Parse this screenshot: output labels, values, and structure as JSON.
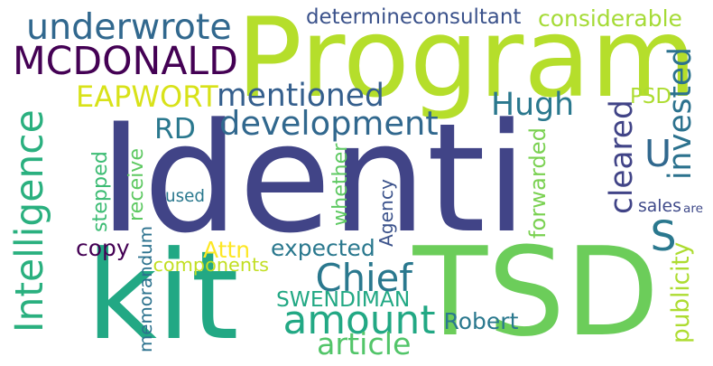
{
  "words": [
    {
      "text": "Identi",
      "color": "#414487"
    },
    {
      "text": "Program",
      "color": "#b5de2b"
    },
    {
      "text": "TSD",
      "color": "#6ccd5a"
    },
    {
      "text": "kit",
      "color": "#22a884"
    },
    {
      "text": "MCDONALD",
      "color": "#440154"
    },
    {
      "text": "underwrote",
      "color": "#31688e"
    },
    {
      "text": "development",
      "color": "#31688e"
    },
    {
      "text": "EAPWORT",
      "color": "#d8e219"
    },
    {
      "text": "mentioned",
      "color": "#355f8d"
    },
    {
      "text": "Intelligence",
      "color": "#2ab07f"
    },
    {
      "text": "invested",
      "color": "#2c728e"
    },
    {
      "text": "Hugh",
      "color": "#2a788e"
    },
    {
      "text": "RD",
      "color": "#2a788e"
    },
    {
      "text": "cleared",
      "color": "#414487"
    },
    {
      "text": "U",
      "color": "#31688e"
    },
    {
      "text": "S",
      "color": "#2a788e"
    },
    {
      "text": "amount",
      "color": "#22a884"
    },
    {
      "text": "Chief",
      "color": "#2a788e"
    },
    {
      "text": "article",
      "color": "#52c569"
    },
    {
      "text": "determineconsultant",
      "color": "#3b528b"
    },
    {
      "text": "considerable",
      "color": "#a5db36"
    },
    {
      "text": "PSD",
      "color": "#addc30"
    },
    {
      "text": "receive",
      "color": "#5ec962"
    },
    {
      "text": "stepped",
      "color": "#3dbc74"
    },
    {
      "text": "whether",
      "color": "#5ec962"
    },
    {
      "text": "forwarded",
      "color": "#7ad151"
    },
    {
      "text": "used",
      "color": "#2a788e"
    },
    {
      "text": "sales",
      "color": "#3e4989"
    },
    {
      "text": "are",
      "color": "#3e4989"
    },
    {
      "text": "Agency",
      "color": "#3b528b"
    },
    {
      "text": "copy",
      "color": "#440154"
    },
    {
      "text": "Attn",
      "color": "#fde725"
    },
    {
      "text": "expected",
      "color": "#2a788e"
    },
    {
      "text": "components",
      "color": "#c2df23"
    },
    {
      "text": "memorandum",
      "color": "#2c728e"
    },
    {
      "text": "SWENDIMAN",
      "color": "#22a884"
    },
    {
      "text": "publicity",
      "color": "#addc30"
    },
    {
      "text": "Robert",
      "color": "#2a788e"
    }
  ]
}
